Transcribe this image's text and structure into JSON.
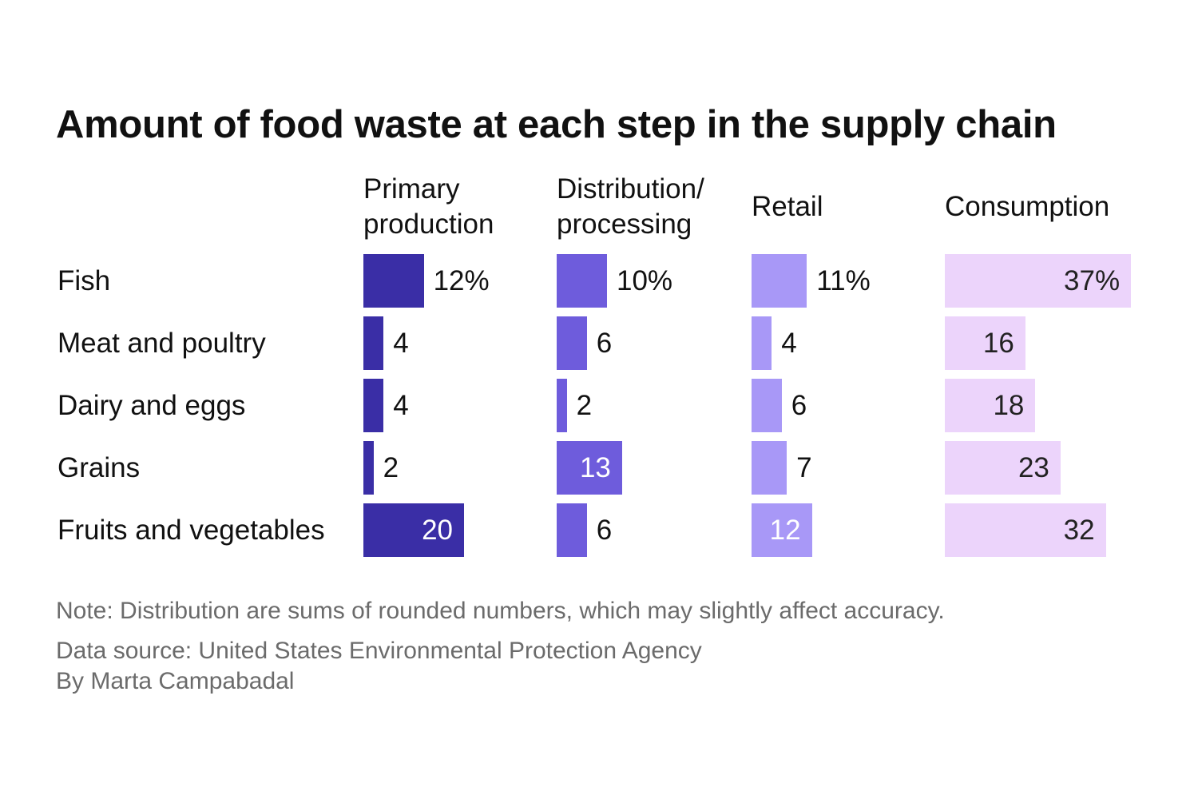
{
  "chart_data": {
    "type": "bar",
    "title": "Amount of food waste at each step in the supply chain",
    "categories": [
      "Fish",
      "Meat and poultry",
      "Dairy and eggs",
      "Grains",
      "Fruits and vegetables"
    ],
    "series": [
      {
        "name": "Primary\nproduction",
        "values": [
          12,
          4,
          4,
          2,
          20
        ],
        "labels": [
          "12%",
          "4",
          "4",
          "2",
          "20"
        ],
        "color": "#3a2ea6"
      },
      {
        "name": "Distribution/\nprocessing",
        "values": [
          10,
          6,
          2,
          13,
          6
        ],
        "labels": [
          "10%",
          "6",
          "2",
          "13",
          "6"
        ],
        "color": "#6e5cdc"
      },
      {
        "name": "Retail",
        "values": [
          11,
          4,
          6,
          7,
          12
        ],
        "labels": [
          "11%",
          "4",
          "6",
          "7",
          "12"
        ],
        "color": "#a898f7"
      },
      {
        "name": "Consumption",
        "values": [
          37,
          16,
          18,
          23,
          32
        ],
        "labels": [
          "37%",
          "16",
          "18",
          "23",
          "32"
        ],
        "color": "#ecd4fb"
      }
    ],
    "unit": "%",
    "grid": false
  },
  "footer": {
    "note": "Note: Distribution are sums of rounded numbers, which may slightly affect accuracy.",
    "source": "Data source: United States Environmental Protection Agency",
    "byline": "By Marta Campabadal"
  }
}
